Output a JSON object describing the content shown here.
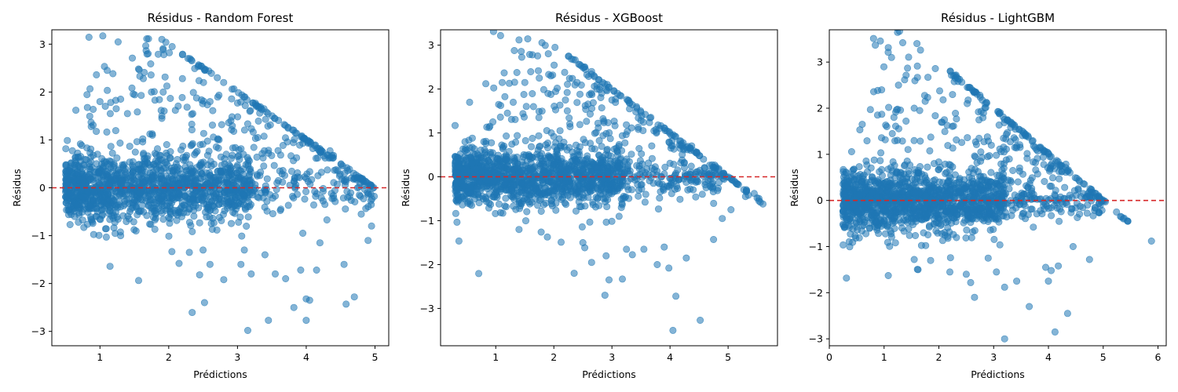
{
  "colors": {
    "points": "#1f77b4",
    "reference_line": "#d62728"
  },
  "chart_data": [
    {
      "type": "scatter",
      "title": "Résidus - Random Forest",
      "xlabel": "Prédictions",
      "ylabel": "Résidus",
      "xlim": [
        0.3,
        5.2
      ],
      "ylim": [
        -3.3,
        3.3
      ],
      "xticks": [
        1,
        2,
        3,
        4,
        5
      ],
      "yticks": [
        -3,
        -2,
        -1,
        0,
        1,
        2,
        3
      ],
      "reference_line": {
        "y": 0,
        "style": "dashed",
        "color": "#d62728"
      },
      "cloud": {
        "x_min": 0.5,
        "x_max": 5.0,
        "ceiling_x": 5.0,
        "max_x": 5.0,
        "spread": 0.36,
        "n": 1500,
        "seed": 11
      },
      "outliers": [
        [
          1.9,
          3.1
        ],
        [
          2.05,
          2.95
        ],
        [
          1.7,
          2.8
        ],
        [
          2.2,
          2.78
        ],
        [
          2.28,
          2.7
        ],
        [
          1.58,
          2.33
        ],
        [
          2.2,
          2.28
        ],
        [
          1.75,
          2.0
        ],
        [
          1.92,
          2.0
        ],
        [
          1.8,
          1.83
        ],
        [
          1.3,
          1.85
        ],
        [
          1.0,
          1.8
        ],
        [
          0.65,
          1.62
        ],
        [
          1.9,
          1.5
        ],
        [
          1.6,
          1.93
        ],
        [
          1.4,
          1.55
        ],
        [
          1.15,
          1.55
        ],
        [
          1.9,
          1.45
        ],
        [
          2.6,
          1.8
        ],
        [
          2.35,
          1.55
        ],
        [
          3.15,
          -2.98
        ],
        [
          3.45,
          -2.77
        ],
        [
          4.0,
          -2.77
        ],
        [
          2.52,
          -2.4
        ],
        [
          4.58,
          -2.43
        ],
        [
          4.7,
          -2.28
        ],
        [
          4.05,
          -2.35
        ],
        [
          4.0,
          -2.32
        ],
        [
          3.7,
          -1.9
        ],
        [
          3.82,
          -2.5
        ],
        [
          3.92,
          -1.72
        ],
        [
          4.15,
          -1.72
        ],
        [
          3.55,
          -1.8
        ],
        [
          3.2,
          -1.8
        ],
        [
          2.45,
          -1.82
        ],
        [
          2.8,
          -1.92
        ],
        [
          4.55,
          -1.6
        ],
        [
          3.05,
          -1.6
        ],
        [
          2.6,
          -1.6
        ],
        [
          2.15,
          -1.58
        ],
        [
          2.5,
          -1.3
        ],
        [
          2.3,
          -1.35
        ],
        [
          3.4,
          -1.4
        ],
        [
          3.1,
          -1.3
        ],
        [
          4.2,
          -1.15
        ],
        [
          4.9,
          -1.1
        ],
        [
          4.95,
          -0.8
        ],
        [
          4.8,
          -0.55
        ],
        [
          3.95,
          -0.95
        ],
        [
          1.3,
          -1.0
        ]
      ]
    },
    {
      "type": "scatter",
      "title": "Résidus - XGBoost",
      "xlabel": "Prédictions",
      "ylabel": "Résidus",
      "xlim": [
        0.05,
        5.85
      ],
      "ylim": [
        -3.85,
        3.35
      ],
      "xticks": [
        1,
        2,
        3,
        4,
        5
      ],
      "yticks": [
        -3,
        -2,
        -1,
        0,
        1,
        2,
        3
      ],
      "reference_line": {
        "y": 0,
        "style": "dashed",
        "color": "#d62728"
      },
      "cloud": {
        "x_min": 0.3,
        "x_max": 4.95,
        "ceiling_x": 5.0,
        "max_x": 5.6,
        "spread": 0.33,
        "n": 1500,
        "seed": 23
      },
      "outliers": [
        [
          1.4,
          3.12
        ],
        [
          2.02,
          2.95
        ],
        [
          0.55,
          1.7
        ],
        [
          2.52,
          2.5
        ],
        [
          2.65,
          2.4
        ],
        [
          1.95,
          2.3
        ],
        [
          1.75,
          2.25
        ],
        [
          1.5,
          2.15
        ],
        [
          2.4,
          2.15
        ],
        [
          2.2,
          1.75
        ],
        [
          1.3,
          1.7
        ],
        [
          1.05,
          1.65
        ],
        [
          1.9,
          1.9
        ],
        [
          2.8,
          2.05
        ],
        [
          3.0,
          1.75
        ],
        [
          0.95,
          1.25
        ],
        [
          1.2,
          1.45
        ],
        [
          1.65,
          1.6
        ],
        [
          4.05,
          -3.5
        ],
        [
          4.52,
          -3.27
        ],
        [
          4.1,
          -2.72
        ],
        [
          2.88,
          -2.7
        ],
        [
          2.95,
          -2.35
        ],
        [
          3.18,
          -2.33
        ],
        [
          2.35,
          -2.2
        ],
        [
          3.98,
          -2.08
        ],
        [
          3.78,
          -2.0
        ],
        [
          2.65,
          -1.95
        ],
        [
          2.9,
          -1.8
        ],
        [
          3.25,
          -1.65
        ],
        [
          3.55,
          -1.65
        ],
        [
          2.5,
          -1.5
        ],
        [
          4.28,
          -1.85
        ],
        [
          4.75,
          -1.43
        ],
        [
          4.9,
          -0.95
        ],
        [
          5.05,
          -0.75
        ],
        [
          5.3,
          -0.45
        ],
        [
          5.6,
          -0.62
        ],
        [
          5.45,
          -0.38
        ],
        [
          5.35,
          -0.42
        ],
        [
          3.9,
          -1.6
        ],
        [
          1.4,
          -1.2
        ]
      ]
    },
    {
      "type": "scatter",
      "title": "Résidus - LightGBM",
      "xlabel": "Prédictions",
      "ylabel": "Résidus",
      "xlim": [
        0.0,
        6.15
      ],
      "ylim": [
        -3.15,
        3.7
      ],
      "xticks": [
        0,
        1,
        2,
        3,
        4,
        5,
        6
      ],
      "yticks": [
        -3,
        -2,
        -1,
        0,
        1,
        2,
        3
      ],
      "reference_line": {
        "y": 0,
        "style": "dashed",
        "color": "#d62728"
      },
      "cloud": {
        "x_min": 0.25,
        "x_max": 5.0,
        "ceiling_x": 5.0,
        "max_x": 5.45,
        "spread": 0.34,
        "n": 1500,
        "seed": 37
      },
      "outliers": [
        [
          1.6,
          3.4
        ],
        [
          1.8,
          2.67
        ],
        [
          2.3,
          2.65
        ],
        [
          2.35,
          2.58
        ],
        [
          2.52,
          2.45
        ],
        [
          1.75,
          2.15
        ],
        [
          1.65,
          1.95
        ],
        [
          0.75,
          1.97
        ],
        [
          0.88,
          1.85
        ],
        [
          1.05,
          1.6
        ],
        [
          0.6,
          1.65
        ],
        [
          1.55,
          2.0
        ],
        [
          2.1,
          1.75
        ],
        [
          2.75,
          2.28
        ],
        [
          1.4,
          1.72
        ],
        [
          1.15,
          1.45
        ],
        [
          0.45,
          0.68
        ],
        [
          3.2,
          -3.0
        ],
        [
          4.12,
          -2.85
        ],
        [
          4.35,
          -2.45
        ],
        [
          3.65,
          -2.3
        ],
        [
          2.65,
          -2.1
        ],
        [
          3.2,
          -1.88
        ],
        [
          3.42,
          -1.75
        ],
        [
          2.58,
          -1.78
        ],
        [
          4.0,
          -1.75
        ],
        [
          2.5,
          -1.6
        ],
        [
          2.2,
          -1.55
        ],
        [
          1.62,
          -1.5
        ],
        [
          3.05,
          -1.55
        ],
        [
          4.05,
          -1.52
        ],
        [
          3.95,
          -1.45
        ],
        [
          4.18,
          -1.42
        ],
        [
          1.55,
          -1.28
        ],
        [
          4.75,
          -1.28
        ],
        [
          5.88,
          -0.88
        ],
        [
          5.45,
          -0.45
        ],
        [
          1.85,
          -1.3
        ],
        [
          2.9,
          -1.25
        ],
        [
          4.45,
          -1.0
        ]
      ]
    }
  ]
}
